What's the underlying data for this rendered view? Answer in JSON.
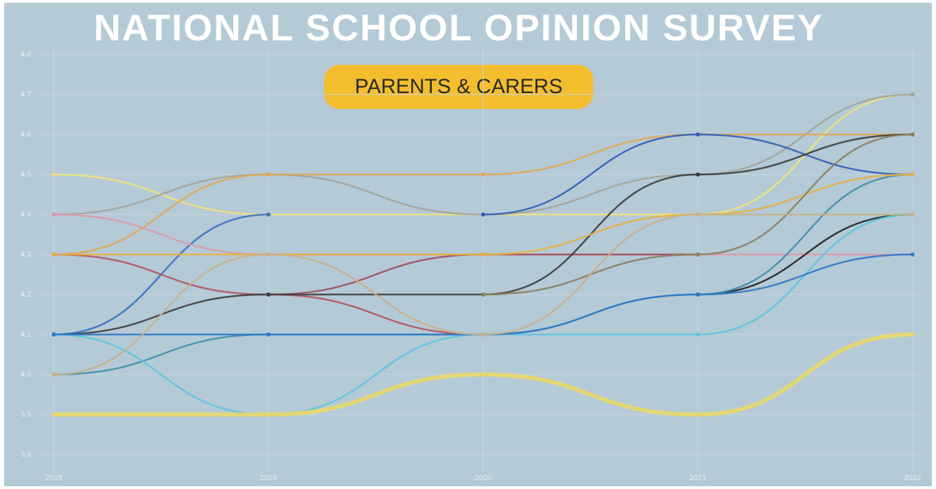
{
  "chart_data": {
    "type": "line",
    "title": "NATIONAL SCHOOL OPINION SURVEY",
    "subtitle": "PARENTS & CARERS",
    "categories": [
      "2018",
      "2019",
      "2020",
      "2021",
      "2022"
    ],
    "series": [
      {
        "color": "#f2e27a",
        "values": [
          4.5,
          4.4,
          4.4,
          4.4,
          4.7
        ]
      },
      {
        "color": "#a3a39a",
        "values": [
          4.4,
          4.5,
          4.4,
          4.5,
          4.7
        ]
      },
      {
        "color": "#e0a851",
        "values": [
          4.3,
          4.5,
          4.5,
          4.6,
          4.6
        ]
      },
      {
        "color": "#3a6fc4",
        "values": [
          4.1,
          4.4,
          null,
          null,
          null
        ]
      },
      {
        "color": "#2f5db8",
        "values": [
          null,
          null,
          4.4,
          4.6,
          4.5
        ]
      },
      {
        "color": "#d99aa6",
        "values": [
          4.4,
          4.3,
          4.3,
          4.3,
          4.3
        ]
      },
      {
        "color": "#b0545e",
        "values": [
          4.3,
          4.2,
          4.1,
          null,
          null
        ]
      },
      {
        "color": "#9c4f5e",
        "values": [
          null,
          4.2,
          4.3,
          4.3,
          null
        ]
      },
      {
        "color": "#3d3d3d",
        "values": [
          4.1,
          4.2,
          4.2,
          4.5,
          4.6
        ]
      },
      {
        "color": "#222222",
        "values": [
          null,
          null,
          null,
          4.2,
          4.4
        ]
      },
      {
        "color": "#3f8fa8",
        "values": [
          4.0,
          4.1,
          4.1,
          4.2,
          4.5
        ]
      },
      {
        "color": "#5cc4e0",
        "values": [
          4.1,
          3.9,
          4.1,
          4.1,
          4.4
        ]
      },
      {
        "color": "#e8d86a",
        "values": [
          3.9,
          3.9,
          4.0,
          3.9,
          4.1
        ]
      },
      {
        "color": "#2f78c8",
        "values": [
          4.1,
          4.1,
          4.1,
          4.2,
          4.3
        ]
      },
      {
        "color": "#e8b040",
        "values": [
          4.3,
          4.3,
          4.3,
          4.4,
          4.5
        ]
      },
      {
        "color": "#8b8060",
        "values": [
          null,
          null,
          4.2,
          4.3,
          4.6
        ]
      },
      {
        "color": "#c9b08a",
        "values": [
          4.0,
          4.3,
          4.1,
          4.4,
          4.4
        ]
      }
    ],
    "ylim": [
      3.8,
      4.8
    ],
    "yticks": [
      3.8,
      3.9,
      {
        "value": 4,
        "label": "4.0"
      },
      4.1,
      4.2,
      4.3,
      4.4,
      4.5,
      4.6,
      4.7,
      4.8
    ],
    "grid": true
  }
}
